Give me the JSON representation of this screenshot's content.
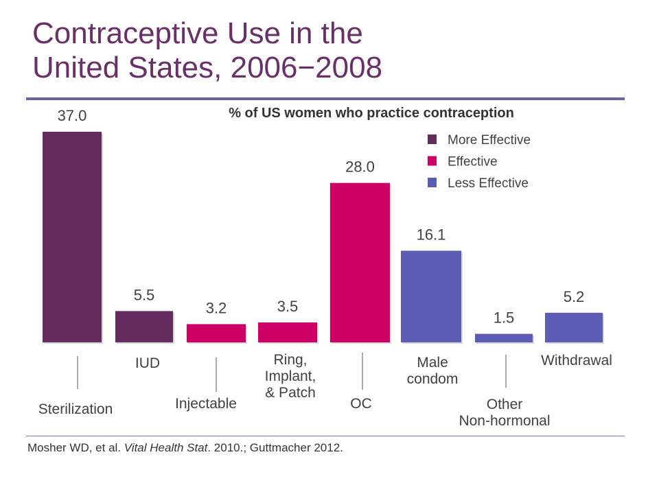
{
  "title": "Contraceptive Use in the\nUnited States, 2006−2008",
  "citation": {
    "part1": "Mosher WD, et al. ",
    "journal": "Vital Health Stat",
    "part2": ". 2010.; Guttmacher 2012."
  },
  "chart_data": {
    "type": "bar",
    "subtitle": "% of US women who practice contraception",
    "categories": [
      "Sterilization",
      "IUD",
      "Injectable",
      "Ring,\nImplant,\n& Patch",
      "OC",
      "Male\ncondom",
      "Other\nNon-hormonal",
      "Withdrawal"
    ],
    "values": [
      37.0,
      5.5,
      3.2,
      3.5,
      28.0,
      16.1,
      1.5,
      5.2
    ],
    "value_labels": [
      "37.0",
      "5.5",
      "3.2",
      "3.5",
      "28.0",
      "16.1",
      "1.5",
      "5.2"
    ],
    "effectiveness": [
      "More Effective",
      "More Effective",
      "Effective",
      "Effective",
      "Effective",
      "Less Effective",
      "Less Effective",
      "Less Effective"
    ],
    "legend": [
      {
        "name": "More Effective",
        "color": "#652d5f"
      },
      {
        "name": "Effective",
        "color": "#cc0066"
      },
      {
        "name": "Less Effective",
        "color": "#5b5db4"
      }
    ],
    "legend_position": "top-right",
    "grid": false
  }
}
